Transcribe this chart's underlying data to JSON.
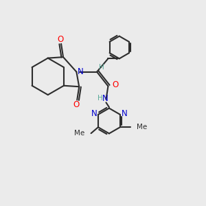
{
  "background_color": "#ebebeb",
  "bond_color": "#2d2d2d",
  "N_color": "#0000cc",
  "O_color": "#ff0000",
  "H_color": "#5aaa99",
  "figure_size": [
    3.0,
    3.0
  ],
  "dpi": 100,
  "xlim": [
    0,
    10
  ],
  "ylim": [
    0,
    10
  ],
  "lw": 1.5,
  "fs": 8.5
}
